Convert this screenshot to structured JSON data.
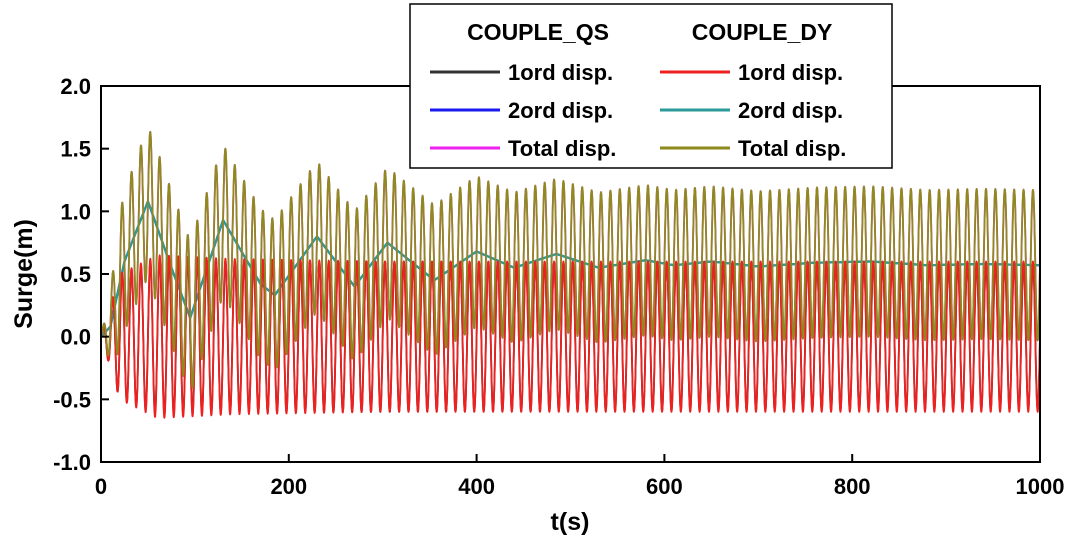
{
  "chart_data": {
    "type": "line",
    "xlabel": "t(s)",
    "ylabel": "Surge(m)",
    "xlim": [
      0,
      1000
    ],
    "ylim": [
      -1.0,
      2.0
    ],
    "x_ticks": [
      0,
      200,
      400,
      600,
      800,
      1000
    ],
    "x_tick_labels": [
      "0",
      "200",
      "400",
      "600",
      "800",
      "1000"
    ],
    "y_ticks": [
      -1.0,
      -0.5,
      0.0,
      0.5,
      1.0,
      1.5,
      2.0
    ],
    "y_tick_labels": [
      "-1.0",
      "-0.5",
      "0.0",
      "0.5",
      "1.0",
      "1.5",
      "2.0"
    ],
    "grid": false,
    "legend": {
      "placement": "top-center",
      "groups": [
        "COUPLE_QS",
        "COUPLE_DY"
      ]
    },
    "series": [
      {
        "name": "1ord disp.",
        "group": "COUPLE_QS",
        "color": "#333333",
        "kind": "oscillation",
        "period": 10,
        "mean_knots": [
          [
            0,
            0
          ],
          [
            20,
            0
          ],
          [
            1000,
            0
          ]
        ],
        "amp_knots": [
          [
            0,
            0
          ],
          [
            20,
            0.5
          ],
          [
            60,
            0.62
          ],
          [
            140,
            0.6
          ],
          [
            300,
            0.6
          ],
          [
            1000,
            0.58
          ]
        ]
      },
      {
        "name": "1ord disp.",
        "group": "COUPLE_DY",
        "color": "#ee2020",
        "kind": "oscillation",
        "period": 10,
        "mean_knots": [
          [
            0,
            0
          ],
          [
            20,
            0
          ],
          [
            1000,
            0
          ]
        ],
        "amp_knots": [
          [
            0,
            0
          ],
          [
            20,
            0.5
          ],
          [
            60,
            0.65
          ],
          [
            140,
            0.62
          ],
          [
            300,
            0.6
          ],
          [
            1000,
            0.6
          ]
        ]
      },
      {
        "name": "2ord disp.",
        "group": "COUPLE_QS",
        "color": "#1a1aee",
        "kind": "slow-drift",
        "points": [
          [
            0,
            0
          ],
          [
            10,
            0.08
          ],
          [
            25,
            0.6
          ],
          [
            50,
            1.08
          ],
          [
            75,
            0.55
          ],
          [
            95,
            0.15
          ],
          [
            130,
            0.93
          ],
          [
            170,
            0.42
          ],
          [
            185,
            0.33
          ],
          [
            230,
            0.8
          ],
          [
            270,
            0.4
          ],
          [
            305,
            0.75
          ],
          [
            355,
            0.45
          ],
          [
            400,
            0.68
          ],
          [
            440,
            0.55
          ],
          [
            485,
            0.66
          ],
          [
            530,
            0.55
          ],
          [
            580,
            0.61
          ],
          [
            610,
            0.57
          ],
          [
            650,
            0.6
          ],
          [
            700,
            0.56
          ],
          [
            760,
            0.59
          ],
          [
            820,
            0.6
          ],
          [
            880,
            0.57
          ],
          [
            940,
            0.58
          ],
          [
            1000,
            0.57
          ]
        ]
      },
      {
        "name": "2ord disp.",
        "group": "COUPLE_DY",
        "color": "#2a9a9a",
        "kind": "slow-drift",
        "points": [
          [
            0,
            0
          ],
          [
            10,
            0.08
          ],
          [
            25,
            0.6
          ],
          [
            50,
            1.08
          ],
          [
            75,
            0.55
          ],
          [
            95,
            0.15
          ],
          [
            130,
            0.93
          ],
          [
            170,
            0.42
          ],
          [
            185,
            0.33
          ],
          [
            230,
            0.8
          ],
          [
            270,
            0.4
          ],
          [
            305,
            0.75
          ],
          [
            355,
            0.45
          ],
          [
            400,
            0.68
          ],
          [
            440,
            0.55
          ],
          [
            485,
            0.66
          ],
          [
            530,
            0.55
          ],
          [
            580,
            0.61
          ],
          [
            610,
            0.57
          ],
          [
            650,
            0.6
          ],
          [
            700,
            0.56
          ],
          [
            760,
            0.59
          ],
          [
            820,
            0.6
          ],
          [
            880,
            0.57
          ],
          [
            940,
            0.58
          ],
          [
            1000,
            0.57
          ]
        ]
      },
      {
        "name": "Total disp.",
        "group": "COUPLE_QS",
        "color": "#ee22ee",
        "kind": "total",
        "period": 10,
        "amp_knots": [
          [
            0,
            0
          ],
          [
            20,
            0.55
          ],
          [
            60,
            0.62
          ],
          [
            140,
            0.6
          ],
          [
            300,
            0.6
          ],
          [
            1000,
            0.6
          ]
        ]
      },
      {
        "name": "Total disp.",
        "group": "COUPLE_DY",
        "color": "#8f8a1e",
        "kind": "total",
        "period": 10,
        "amp_knots": [
          [
            0,
            0
          ],
          [
            20,
            0.55
          ],
          [
            60,
            0.62
          ],
          [
            140,
            0.6
          ],
          [
            300,
            0.6
          ],
          [
            1000,
            0.6
          ]
        ]
      }
    ]
  }
}
